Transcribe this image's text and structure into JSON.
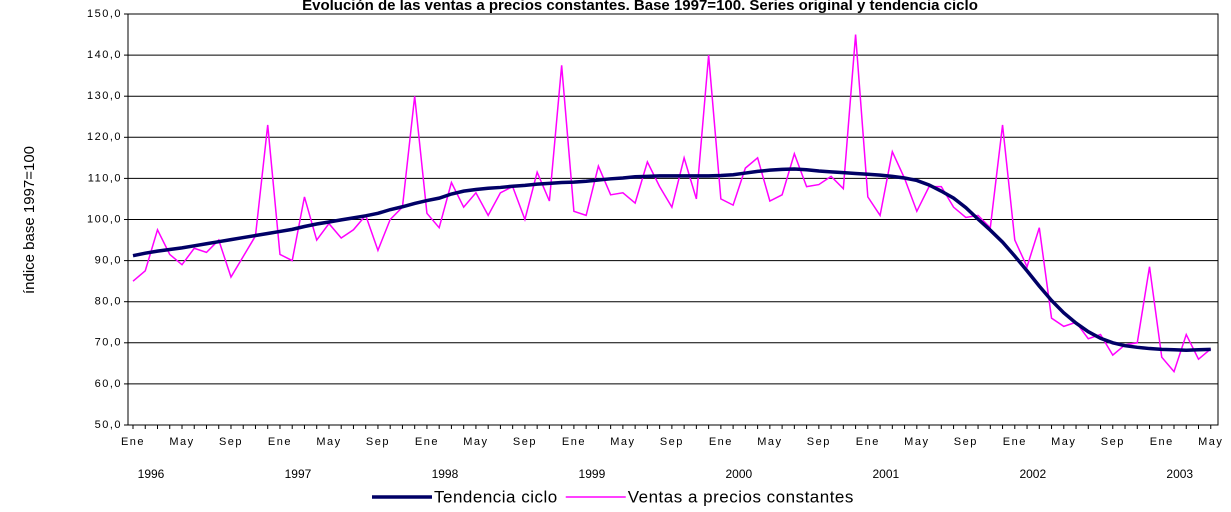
{
  "chart_data": {
    "type": "line",
    "title": "Evolución de las ventas a precios constantes. Base 1997=100. Series original y tendencia ciclo",
    "y_label": "índice base 1997=100",
    "categories": [
      "Ene",
      null,
      null,
      null,
      "May",
      null,
      null,
      null,
      "Sep",
      null,
      null,
      null,
      "Ene",
      null,
      null,
      null,
      "May",
      null,
      null,
      null,
      "Sep",
      null,
      null,
      null,
      "Ene",
      null,
      null,
      null,
      "May",
      null,
      null,
      null,
      "Sep",
      null,
      null,
      null,
      "Ene",
      null,
      null,
      null,
      "May",
      null,
      null,
      null,
      "Sep",
      null,
      null,
      null,
      "Ene",
      null,
      null,
      null,
      "May",
      null,
      null,
      null,
      "Sep",
      null,
      null,
      null,
      "Ene",
      null,
      null,
      null,
      "May",
      null,
      null,
      null,
      "Sep",
      null,
      null,
      null,
      "Ene",
      null,
      null,
      null,
      "May",
      null,
      null,
      null,
      "Sep",
      null,
      null,
      null,
      "Ene",
      null,
      null,
      null,
      "May"
    ],
    "years": [
      "1996",
      "1997",
      "1998",
      "1999",
      "2000",
      "2001",
      "2002",
      "2003"
    ],
    "series": [
      {
        "name": "Tendencia ciclo",
        "color": "#000066",
        "width": 3.5,
        "values": [
          91.2,
          91.8,
          92.3,
          92.7,
          93.1,
          93.6,
          94.1,
          94.6,
          95.1,
          95.6,
          96.1,
          96.6,
          97.1,
          97.6,
          98.3,
          98.9,
          99.4,
          99.9,
          100.4,
          100.9,
          101.5,
          102.4,
          103.1,
          103.9,
          104.6,
          105.2,
          106.2,
          106.9,
          107.3,
          107.6,
          107.8,
          108.1,
          108.3,
          108.6,
          108.8,
          109.0,
          109.1,
          109.3,
          109.6,
          109.9,
          110.1,
          110.4,
          110.5,
          110.6,
          110.6,
          110.6,
          110.6,
          110.6,
          110.7,
          110.9,
          111.3,
          111.7,
          112.0,
          112.2,
          112.3,
          112.1,
          111.8,
          111.6,
          111.4,
          111.2,
          111.0,
          110.8,
          110.5,
          110.1,
          109.5,
          108.4,
          106.9,
          105.2,
          102.9,
          100.1,
          97.4,
          94.5,
          91.1,
          87.5,
          83.8,
          80.3,
          77.3,
          74.8,
          72.7,
          71.1,
          70.0,
          69.3,
          68.9,
          68.6,
          68.4,
          68.3,
          68.2,
          68.3,
          68.4
        ]
      },
      {
        "name": "Ventas a precios constantes",
        "color": "#ff00ff",
        "width": 1.5,
        "values": [
          85,
          87.5,
          97.5,
          91.5,
          89,
          93,
          92,
          95,
          86,
          91,
          96,
          123,
          91.5,
          90,
          105.5,
          95,
          99,
          95.5,
          97.5,
          101,
          92.5,
          100,
          103,
          130,
          101.5,
          98,
          109,
          103,
          106.5,
          101,
          106.5,
          108,
          100,
          111.5,
          104.5,
          137.5,
          102,
          101,
          113,
          106,
          106.5,
          104,
          114,
          108,
          103,
          115,
          105,
          140,
          105,
          103.5,
          112.5,
          115,
          104.5,
          106,
          116,
          108,
          108.5,
          110.5,
          107.5,
          145,
          105.5,
          101,
          116.5,
          110,
          102,
          108,
          108,
          103,
          100.5,
          101,
          98,
          123,
          95,
          88.5,
          98,
          76,
          74,
          75,
          71,
          72,
          67,
          69.5,
          70,
          88.5,
          66.5,
          63,
          72,
          66,
          68.5
        ]
      }
    ],
    "ylim": [
      50,
      150
    ],
    "yticks": [
      {
        "value": 50,
        "label": "50,0"
      },
      {
        "value": 60,
        "label": "60,0"
      },
      {
        "value": 70,
        "label": "70,0"
      },
      {
        "value": 80,
        "label": "80,0"
      },
      {
        "value": 90,
        "label": "90,0"
      },
      {
        "value": 100,
        "label": "100,0"
      },
      {
        "value": 110,
        "label": "110,0"
      },
      {
        "value": 120,
        "label": "120,0"
      },
      {
        "value": 130,
        "label": "130,0"
      },
      {
        "value": 140,
        "label": "140,0"
      },
      {
        "value": 150,
        "label": "150,0"
      }
    ],
    "grid": true
  }
}
